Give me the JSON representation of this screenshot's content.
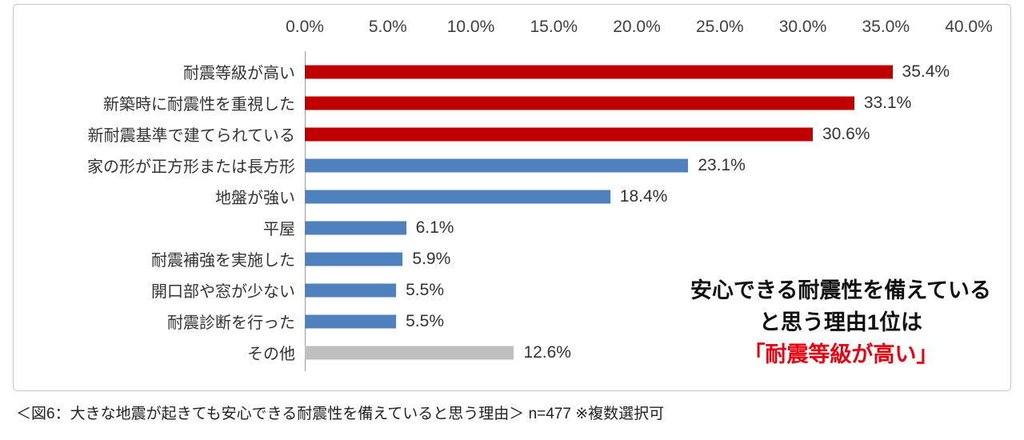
{
  "chart_data": {
    "type": "bar",
    "orientation": "horizontal",
    "title": "",
    "xlabel": "",
    "ylabel": "",
    "xlim": [
      0,
      40
    ],
    "grid": false,
    "axis_ticks": [
      "0.0%",
      "5.0%",
      "10.0%",
      "15.0%",
      "20.0%",
      "25.0%",
      "30.0%",
      "35.0%",
      "40.0%"
    ],
    "categories": [
      "耐震等級が高い",
      "新築時に耐震性を重視した",
      "新耐震基準で建てられている",
      "家の形が正方形または長方形",
      "地盤が強い",
      "平屋",
      "耐震補強を実施した",
      "開口部や窓が少ない",
      "耐震診断を行った",
      "その他"
    ],
    "values": [
      35.4,
      33.1,
      30.6,
      23.1,
      18.4,
      6.1,
      5.9,
      5.5,
      5.5,
      12.6
    ],
    "value_labels": [
      "35.4%",
      "33.1%",
      "30.6%",
      "23.1%",
      "18.4%",
      "6.1%",
      "5.9%",
      "5.5%",
      "5.5%",
      "12.6%"
    ],
    "bar_colors": [
      "#c00000",
      "#c00000",
      "#c00000",
      "#4e81bd",
      "#4e81bd",
      "#4e81bd",
      "#4e81bd",
      "#4e81bd",
      "#4e81bd",
      "#bfbfbf"
    ],
    "colors_legend": {
      "highlight_red": "#c00000",
      "default_blue": "#4e81bd",
      "other_gray": "#bfbfbf",
      "annotation_red": "#e60012"
    },
    "annotation": {
      "line1": "安心できる耐震性を備えている",
      "line2": "と思う理由1位は",
      "line3": "「耐震等級が高い」"
    },
    "caption": "＜図6：大きな地震が起きても安心できる耐震性を備えていると思う理由＞ n=477 ※複数選択可"
  }
}
